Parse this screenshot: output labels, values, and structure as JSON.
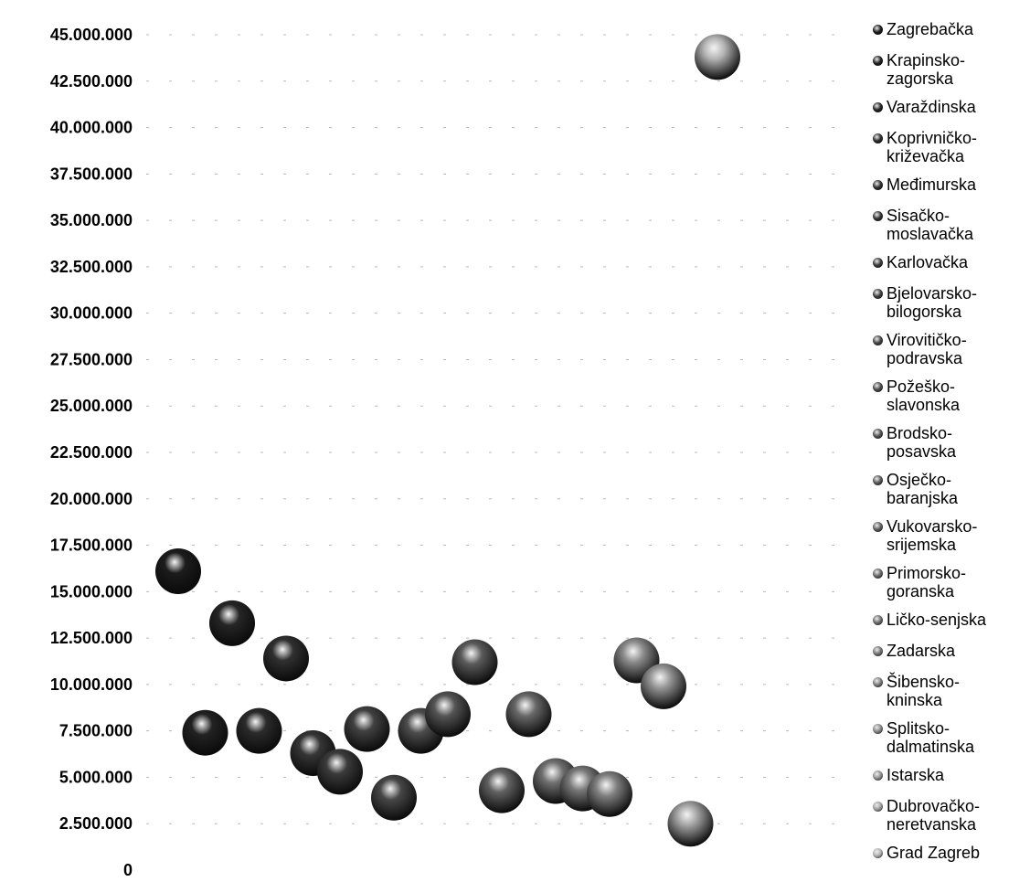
{
  "chart_data": {
    "type": "scatter",
    "title": "",
    "xlabel": "",
    "ylabel": "",
    "ylim": [
      0,
      45000000
    ],
    "y_ticks": [
      "0",
      "2.500.000",
      "5.000.000",
      "7.500.000",
      "10.000.000",
      "12.500.000",
      "15.000.000",
      "17.500.000",
      "20.000.000",
      "22.500.000",
      "25.000.000",
      "27.500.000",
      "30.000.000",
      "32.500.000",
      "35.000.000",
      "37.500.000",
      "40.000.000",
      "42.500.000",
      "45.000.000"
    ],
    "legend_position": "right",
    "x_axis_labels": false,
    "series": [
      {
        "name": "Zagrebačka",
        "x": 1,
        "y": 16100000
      },
      {
        "name": "Krapinsko-zagorska",
        "x": 2,
        "y": 7400000
      },
      {
        "name": "Varaždinska",
        "x": 3,
        "y": 13300000
      },
      {
        "name": "Koprivničko-križevačka",
        "x": 4,
        "y": 7500000
      },
      {
        "name": "Međimurska",
        "x": 5,
        "y": 11400000
      },
      {
        "name": "Sisačko-moslavačka",
        "x": 6,
        "y": 6300000
      },
      {
        "name": "Karlovačka",
        "x": 7,
        "y": 5300000
      },
      {
        "name": "Bjelovarsko-bilogorska",
        "x": 8,
        "y": 7600000
      },
      {
        "name": "Virovitičko-podravska",
        "x": 9,
        "y": 3900000
      },
      {
        "name": "Požeško-slavonska",
        "x": 10,
        "y": 7500000
      },
      {
        "name": "Brodsko-posavska",
        "x": 11,
        "y": 8400000
      },
      {
        "name": "Osječko-baranjska",
        "x": 12,
        "y": 11200000
      },
      {
        "name": "Vukovarsko-srijemska",
        "x": 13,
        "y": 4300000
      },
      {
        "name": "Primorsko-goranska",
        "x": 14,
        "y": 8400000
      },
      {
        "name": "Ličko-senjska",
        "x": 15,
        "y": 4800000
      },
      {
        "name": "Zadarska",
        "x": 16,
        "y": 4400000
      },
      {
        "name": "Šibensko-kninska",
        "x": 17,
        "y": 4100000
      },
      {
        "name": "Splitsko-dalmatinska",
        "x": 18,
        "y": 11300000
      },
      {
        "name": "Istarska",
        "x": 19,
        "y": 9900000
      },
      {
        "name": "Dubrovačko-neretvanska",
        "x": 20,
        "y": 2500000
      },
      {
        "name": "Grad Zagreb",
        "x": 21,
        "y": 43800000
      }
    ]
  },
  "legend": {
    "items": [
      {
        "lines": [
          "Zagrebačka"
        ],
        "color": "#1c1c1c"
      },
      {
        "lines": [
          "Krapinsko-",
          "zagorska"
        ],
        "color": "#222222"
      },
      {
        "lines": [
          "Varaždinska"
        ],
        "color": "#262626"
      },
      {
        "lines": [
          "Koprivničko-",
          "križevačka"
        ],
        "color": "#2b2b2b"
      },
      {
        "lines": [
          "Međimurska"
        ],
        "color": "#303030"
      },
      {
        "lines": [
          "Sisačko-",
          "moslavačka"
        ],
        "color": "#363636"
      },
      {
        "lines": [
          "Karlovačka"
        ],
        "color": "#3b3b3b"
      },
      {
        "lines": [
          "Bjelovarsko-",
          "bilogorska"
        ],
        "color": "#414141"
      },
      {
        "lines": [
          "Virovitičko-",
          "podravska"
        ],
        "color": "#474747"
      },
      {
        "lines": [
          "Požeško-",
          "slavonska"
        ],
        "color": "#4d4d4d"
      },
      {
        "lines": [
          "Brodsko-",
          "posavska"
        ],
        "color": "#545454"
      },
      {
        "lines": [
          "Osječko-",
          "baranjska"
        ],
        "color": "#5a5a5a"
      },
      {
        "lines": [
          "Vukovarsko-",
          "srijemska"
        ],
        "color": "#616161"
      },
      {
        "lines": [
          "Primorsko-",
          "goranska"
        ],
        "color": "#686868"
      },
      {
        "lines": [
          "Ličko-senjska"
        ],
        "color": "#707070"
      },
      {
        "lines": [
          "Zadarska"
        ],
        "color": "#787878"
      },
      {
        "lines": [
          "Šibensko-",
          "kninska"
        ],
        "color": "#808080"
      },
      {
        "lines": [
          "Splitsko-",
          "dalmatinska"
        ],
        "color": "#8a8a8a"
      },
      {
        "lines": [
          "Istarska"
        ],
        "color": "#949494"
      },
      {
        "lines": [
          "Dubrovačko-",
          "neretvanska"
        ],
        "color": "#a2a2a2"
      },
      {
        "lines": [
          "Grad Zagreb"
        ],
        "color": "#b4b4b4"
      }
    ]
  }
}
